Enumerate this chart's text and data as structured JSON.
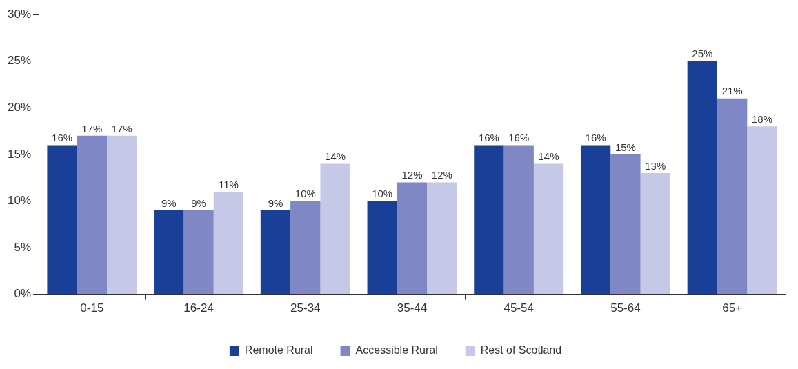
{
  "chart_data": {
    "type": "bar",
    "categories": [
      "0-15",
      "16-24",
      "25-34",
      "35-44",
      "45-54",
      "55-64",
      "65+"
    ],
    "series": [
      {
        "name": "Remote Rural",
        "color": "#1a3f96",
        "values": [
          16,
          9,
          9,
          10,
          16,
          16,
          25
        ],
        "value_labels": [
          "16%",
          "9%",
          "9%",
          "10%",
          "16%",
          "16%",
          "25%"
        ]
      },
      {
        "name": "Accessible Rural",
        "color": "#7f88c4",
        "values": [
          17,
          9,
          10,
          12,
          16,
          15,
          21
        ],
        "value_labels": [
          "17%",
          "9%",
          "10%",
          "12%",
          "16%",
          "15%",
          "21%"
        ]
      },
      {
        "name": "Rest of Scotland",
        "color": "#c5c8e6",
        "values": [
          17,
          11,
          14,
          12,
          14,
          13,
          18
        ],
        "value_labels": [
          "17%",
          "11%",
          "14%",
          "12%",
          "14%",
          "13%",
          "18%"
        ]
      }
    ],
    "ylim": [
      0,
      30
    ],
    "yticks": [
      {
        "value": 0,
        "label": "0%"
      },
      {
        "value": 5,
        "label": "5%"
      },
      {
        "value": 10,
        "label": "10%"
      },
      {
        "value": 15,
        "label": "15%"
      },
      {
        "value": 20,
        "label": "20%"
      },
      {
        "value": 25,
        "label": "25%"
      },
      {
        "value": 30,
        "label": "30%"
      }
    ],
    "grid": false,
    "legend": "bottom"
  }
}
